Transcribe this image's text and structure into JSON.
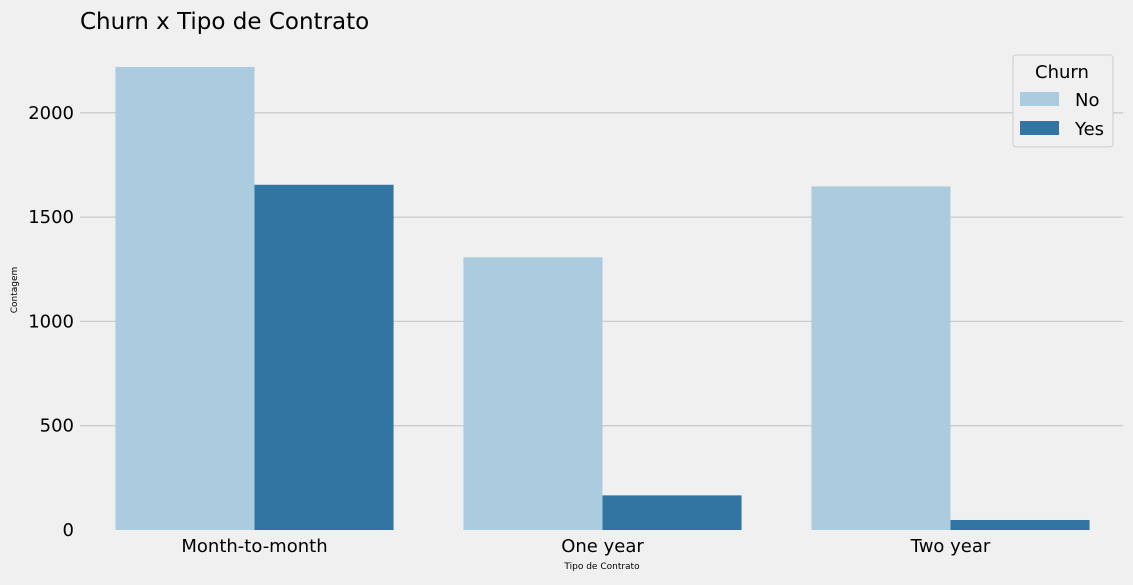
{
  "chart_data": {
    "type": "bar",
    "title": "Churn x Tipo de Contrato",
    "xlabel": "Tipo de Contrato",
    "ylabel": "Contagem",
    "categories": [
      "Month-to-month",
      "One year",
      "Two year"
    ],
    "series": [
      {
        "name": "No",
        "color": "#abcbdf",
        "values": [
          2220,
          1307,
          1647
        ]
      },
      {
        "name": "Yes",
        "color": "#3274a2",
        "values": [
          1655,
          166,
          48
        ]
      }
    ],
    "ylim": [
      0,
      2325
    ],
    "yticks": [
      0,
      500,
      1000,
      1500,
      2000
    ],
    "grid": true,
    "legend_title": "Churn",
    "legend_position": "top-right"
  },
  "colors": {
    "background": "#f0f0f0",
    "grid": "#cbcbcb"
  }
}
